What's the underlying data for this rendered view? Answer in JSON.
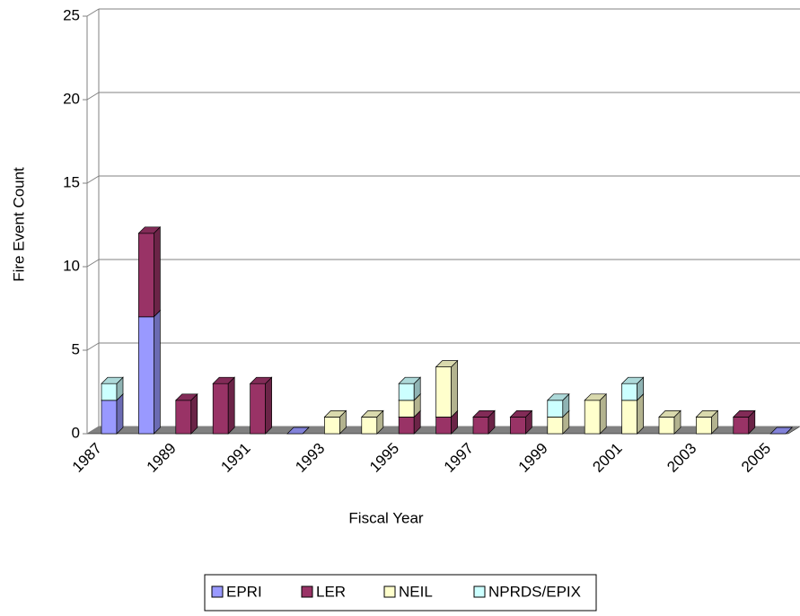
{
  "chart_data": {
    "type": "bar3d_stacked",
    "x_label": "Fiscal Year",
    "y_label": "Fire Event Count",
    "categories": [
      "1987",
      null,
      "1989",
      null,
      "1991",
      null,
      "1993",
      null,
      "1995",
      null,
      "1997",
      null,
      "1999",
      null,
      "2001",
      null,
      "2003",
      null,
      "2005"
    ],
    "series": [
      {
        "name": "EPRI",
        "color": "#9999ff",
        "values": [
          2,
          7,
          0,
          0,
          0,
          0,
          0,
          0,
          0,
          0,
          0,
          0,
          0,
          0,
          0,
          0,
          0,
          0,
          0
        ]
      },
      {
        "name": "LER",
        "color": "#993366",
        "values": [
          0,
          5,
          2,
          3,
          3,
          0,
          0,
          0,
          1,
          1,
          1,
          1,
          0,
          0,
          0,
          0,
          0,
          1,
          0
        ]
      },
      {
        "name": "NEIL",
        "color": "#ffffcc",
        "values": [
          0,
          0,
          0,
          0,
          0,
          0,
          1,
          1,
          1,
          3,
          0,
          0,
          1,
          2,
          2,
          1,
          1,
          0,
          0
        ]
      },
      {
        "name": "NPRDS/EPIX",
        "color": "#ccffff",
        "values": [
          1,
          0,
          0,
          0,
          0,
          0,
          0,
          0,
          1,
          0,
          0,
          0,
          1,
          0,
          1,
          0,
          0,
          0,
          0
        ]
      }
    ],
    "ylim": [
      0,
      25
    ],
    "yticks": [
      0,
      5,
      10,
      15,
      20,
      25
    ],
    "grid": true,
    "legend": "bottom"
  }
}
